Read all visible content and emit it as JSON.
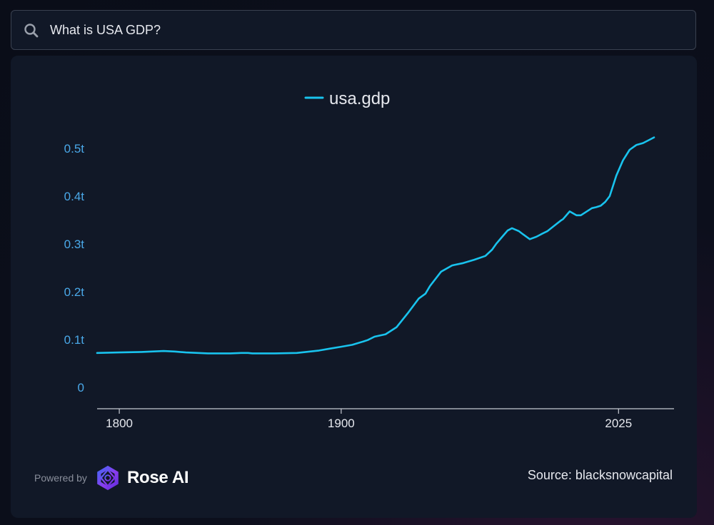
{
  "search": {
    "query": "What is USA GDP?"
  },
  "footer": {
    "powered_by": "Powered by",
    "brand": "Rose AI",
    "source": "Source: blacksnowcapital"
  },
  "colors": {
    "line": "#19c3ee",
    "tick_label": "#4aa8e8",
    "background": "#111827"
  },
  "chart_data": {
    "type": "line",
    "title": "",
    "xlabel": "",
    "ylabel": "",
    "legend": {
      "position": "top-center",
      "entries": [
        "usa.gdp"
      ]
    },
    "xlim": [
      1790,
      2050
    ],
    "ylim": [
      0,
      0.5
    ],
    "x_ticks": [
      1800,
      1900,
      2025
    ],
    "x_tick_labels": [
      "1800",
      "1900",
      "2025"
    ],
    "y_ticks": [
      0,
      0.1,
      0.2,
      0.3,
      0.4,
      0.5
    ],
    "y_tick_labels": [
      "0",
      "0.1t",
      "0.2t",
      "0.3t",
      "0.4t",
      "0.5t"
    ],
    "grid": false,
    "series": [
      {
        "name": "usa.gdp",
        "x": [
          1790,
          1800,
          1810,
          1820,
          1825,
          1830,
          1840,
          1850,
          1855,
          1858,
          1860,
          1870,
          1880,
          1890,
          1895,
          1900,
          1905,
          1910,
          1912,
          1915,
          1920,
          1925,
          1930,
          1935,
          1938,
          1940,
          1945,
          1950,
          1955,
          1960,
          1965,
          1968,
          1970,
          1972,
          1975,
          1977,
          1980,
          1982,
          1985,
          1988,
          1990,
          1993,
          1996,
          1999,
          2000,
          2003,
          2006,
          2008,
          2010,
          2013,
          2015,
          2017,
          2019,
          2021,
          2024,
          2027,
          2030,
          2033,
          2036,
          2039,
          2041
        ],
        "y": [
          0.072,
          0.073,
          0.074,
          0.076,
          0.075,
          0.073,
          0.071,
          0.071,
          0.072,
          0.072,
          0.071,
          0.071,
          0.072,
          0.077,
          0.081,
          0.085,
          0.089,
          0.096,
          0.099,
          0.106,
          0.111,
          0.126,
          0.155,
          0.186,
          0.196,
          0.212,
          0.242,
          0.255,
          0.26,
          0.267,
          0.275,
          0.288,
          0.301,
          0.312,
          0.328,
          0.333,
          0.327,
          0.32,
          0.31,
          0.315,
          0.32,
          0.327,
          0.338,
          0.349,
          0.352,
          0.368,
          0.36,
          0.36,
          0.366,
          0.375,
          0.377,
          0.38,
          0.388,
          0.4,
          0.443,
          0.475,
          0.497,
          0.507,
          0.511,
          0.518,
          0.523
        ]
      }
    ]
  }
}
